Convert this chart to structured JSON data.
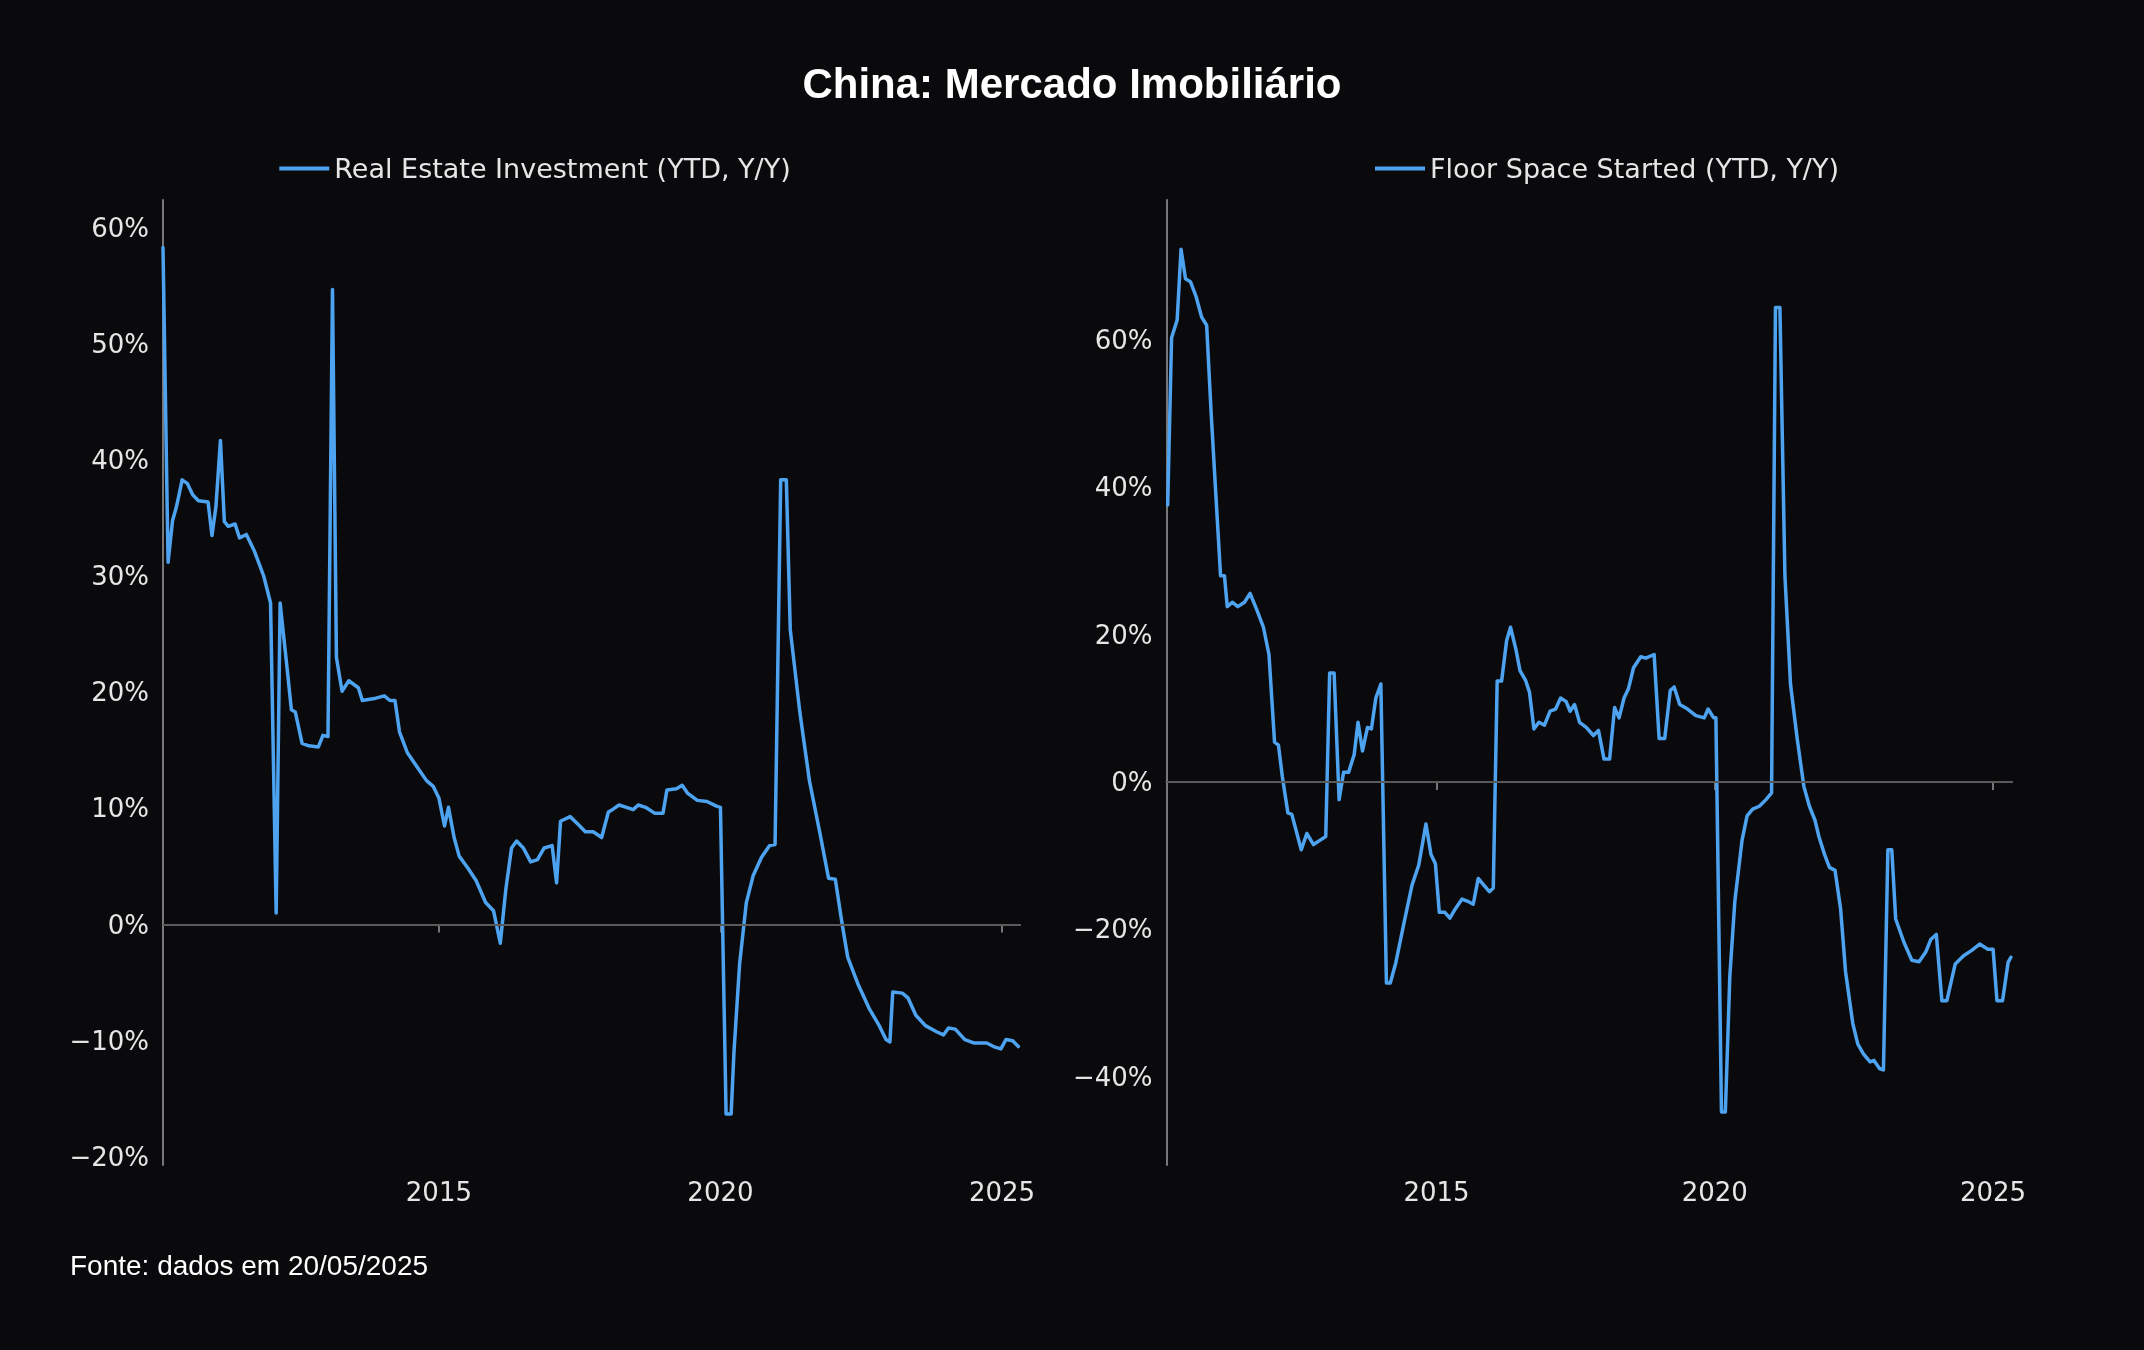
{
  "chart_data": [
    {
      "type": "line",
      "title": "China: Mercado Imobiliário",
      "annotations": [
        "Fonte: dados em 20/05/2025"
      ],
      "legend": "top",
      "marker": "none",
      "line_style": "solid",
      "grid": false,
      "xlim": [
        2010.1,
        2025.32
      ],
      "xticks": [
        2015,
        2020,
        2025
      ],
      "ylim": [
        -20.7,
        62.4
      ],
      "yticks": [
        {
          "value": -20,
          "label": "−20%"
        },
        {
          "value": -10,
          "label": "−10%"
        },
        {
          "value": 0,
          "label": "0%"
        },
        {
          "value": 10,
          "label": "10%"
        },
        {
          "value": 20,
          "label": "20%"
        },
        {
          "value": 30,
          "label": "30%"
        },
        {
          "value": 40,
          "label": "40%"
        },
        {
          "value": 50,
          "label": "50%"
        },
        {
          "value": 60,
          "label": "60%"
        }
      ],
      "ref_lines": [
        {
          "axis": "y",
          "value": 0,
          "color": "#5a5a5a"
        }
      ],
      "series": [
        {
          "name": "Real Estate Investment (YTD, Y/Y)",
          "color": "#4da3f0",
          "x": [
            2010.1,
            2010.19,
            2010.27,
            2010.34,
            2010.44,
            2010.53,
            2010.63,
            2010.73,
            2010.9,
            2010.97,
            2011.04,
            2011.12,
            2011.19,
            2011.26,
            2011.38,
            2011.46,
            2011.58,
            2011.72,
            2011.89,
            2012.01,
            2012.11,
            2012.18,
            2012.31,
            2012.38,
            2012.45,
            2012.57,
            2012.69,
            2012.86,
            2012.94,
            2013.03,
            2013.11,
            2013.18,
            2013.28,
            2013.4,
            2013.57,
            2013.64,
            2013.88,
            2014.03,
            2014.13,
            2014.22,
            2014.3,
            2014.44,
            2014.61,
            2014.78,
            2014.9,
            2015.0,
            2015.1,
            2015.17,
            2015.27,
            2015.36,
            2015.51,
            2015.66,
            2015.83,
            2015.97,
            2016.09,
            2016.19,
            2016.29,
            2016.38,
            2016.5,
            2016.63,
            2016.75,
            2016.87,
            2017.01,
            2017.09,
            2017.16,
            2017.33,
            2017.48,
            2017.6,
            2017.74,
            2017.89,
            2018.01,
            2018.08,
            2018.2,
            2018.33,
            2018.45,
            2018.54,
            2018.67,
            2018.83,
            2018.98,
            2019.05,
            2019.22,
            2019.32,
            2019.42,
            2019.59,
            2019.76,
            2019.93,
            2020.0,
            2020.1,
            2020.19,
            2020.24,
            2020.34,
            2020.46,
            2020.58,
            2020.73,
            2020.87,
            2020.97,
            2021.07,
            2021.17,
            2021.24,
            2021.41,
            2021.58,
            2021.77,
            2021.92,
            2022.04,
            2022.16,
            2022.26,
            2022.45,
            2022.65,
            2022.82,
            2022.94,
            2023.01,
            2023.06,
            2023.23,
            2023.33,
            2023.47,
            2023.64,
            2023.83,
            2023.96,
            2024.05,
            2024.17,
            2024.34,
            2024.51,
            2024.73,
            2024.85,
            2024.98,
            2025.07,
            2025.19,
            2025.29
          ],
          "values": [
            58.3,
            31.2,
            34.8,
            36,
            38.3,
            38,
            37,
            36.5,
            36.4,
            33.5,
            36,
            41.7,
            34.7,
            34.3,
            34.5,
            33.3,
            33.6,
            32.2,
            30,
            27.7,
            1,
            27.7,
            21.8,
            18.5,
            18.3,
            15.6,
            15.4,
            15.3,
            16.3,
            16.2,
            54.7,
            23,
            20.1,
            21,
            20.4,
            19.3,
            19.5,
            19.7,
            19.3,
            19.3,
            16.6,
            14.8,
            13.6,
            12.4,
            11.9,
            10.9,
            8.5,
            10.1,
            7.5,
            5.9,
            4.9,
            3.8,
            1.9,
            1.2,
            -1.6,
            3.1,
            6.6,
            7.2,
            6.6,
            5.4,
            5.6,
            6.6,
            6.8,
            3.6,
            8.9,
            9.3,
            8.6,
            8,
            8,
            7.5,
            9.7,
            9.9,
            10.3,
            10.1,
            9.9,
            10.3,
            10.1,
            9.6,
            9.6,
            11.6,
            11.7,
            12,
            11.3,
            10.7,
            10.6,
            10.2,
            10.1,
            -16.3,
            -16.3,
            -11,
            -3.4,
            1.9,
            4.2,
            5.8,
            6.8,
            6.9,
            38.3,
            38.3,
            25.4,
            18.3,
            12.4,
            7.8,
            4,
            3.9,
            0.1,
            -2.8,
            -5.2,
            -7.3,
            -8.7,
            -9.9,
            -10.1,
            -5.8,
            -5.9,
            -6.3,
            -7.8,
            -8.7,
            -9.2,
            -9.5,
            -8.9,
            -9,
            -9.9,
            -10.2,
            -10.2,
            -10.5,
            -10.7,
            -9.9,
            -10,
            -10.5
          ]
        }
      ]
    },
    {
      "type": "line",
      "legend": "top",
      "marker": "none",
      "line_style": "solid",
      "grid": false,
      "xlim": [
        2010.15,
        2025.34
      ],
      "xticks": [
        2015,
        2020,
        2025
      ],
      "ylim": [
        -52,
        79
      ],
      "yticks": [
        {
          "value": -40,
          "label": "−40%"
        },
        {
          "value": -20,
          "label": "−20%"
        },
        {
          "value": 0,
          "label": "0%"
        },
        {
          "value": 20,
          "label": "20%"
        },
        {
          "value": 40,
          "label": "40%"
        },
        {
          "value": 60,
          "label": "60%"
        }
      ],
      "ref_lines": [
        {
          "axis": "y",
          "value": 0,
          "color": "#5a5a5a"
        }
      ],
      "series": [
        {
          "name": "Floor Space Started (YTD, Y/Y)",
          "color": "#4da3f0",
          "x": [
            2010.17,
            2010.24,
            2010.34,
            2010.41,
            2010.49,
            2010.58,
            2010.68,
            2010.78,
            2010.87,
            2010.95,
            2011.02,
            2011.12,
            2011.19,
            2011.24,
            2011.33,
            2011.43,
            2011.55,
            2011.65,
            2011.77,
            2011.89,
            2011.99,
            2012.09,
            2012.16,
            2012.23,
            2012.33,
            2012.4,
            2012.57,
            2012.67,
            2012.79,
            2012.91,
            2013.01,
            2013.08,
            2013.16,
            2013.25,
            2013.33,
            2013.42,
            2013.52,
            2013.59,
            2013.67,
            2013.76,
            2013.83,
            2013.91,
            2014.0,
            2014.1,
            2014.17,
            2014.27,
            2014.42,
            2014.56,
            2014.68,
            2014.81,
            2014.9,
            2014.98,
            2015.05,
            2015.15,
            2015.24,
            2015.34,
            2015.46,
            2015.56,
            2015.66,
            2015.75,
            2015.85,
            2015.95,
            2016.02,
            2016.09,
            2016.17,
            2016.26,
            2016.33,
            2016.43,
            2016.5,
            2016.6,
            2016.67,
            2016.75,
            2016.84,
            2016.94,
            2017.04,
            2017.14,
            2017.23,
            2017.33,
            2017.4,
            2017.48,
            2017.57,
            2017.69,
            2017.82,
            2017.91,
            2018.01,
            2018.11,
            2018.2,
            2018.28,
            2018.37,
            2018.45,
            2018.54,
            2018.67,
            2018.76,
            2018.91,
            2019.0,
            2019.1,
            2019.2,
            2019.27,
            2019.37,
            2019.51,
            2019.66,
            2019.81,
            2019.88,
            2019.98,
            2020.02,
            2020.12,
            2020.19,
            2020.27,
            2020.36,
            2020.49,
            2020.58,
            2020.68,
            2020.8,
            2020.92,
            2021.02,
            2021.09,
            2021.17,
            2021.26,
            2021.36,
            2021.48,
            2021.6,
            2021.7,
            2021.8,
            2021.87,
            2021.97,
            2022.06,
            2022.16,
            2022.26,
            2022.35,
            2022.48,
            2022.57,
            2022.67,
            2022.79,
            2022.86,
            2022.96,
            2023.03,
            2023.11,
            2023.18,
            2023.25,
            2023.4,
            2023.54,
            2023.67,
            2023.79,
            2023.88,
            2023.98,
            2024.08,
            2024.17,
            2024.32,
            2024.47,
            2024.61,
            2024.76,
            2024.9,
            2025.0,
            2025.07,
            2025.17,
            2025.27,
            2025.32
          ],
          "values": [
            37.6,
            60.3,
            62.7,
            72.3,
            68.3,
            67.9,
            65.9,
            63.1,
            62,
            50.2,
            41,
            28,
            28,
            23.8,
            24.4,
            23.8,
            24.4,
            25.6,
            23.4,
            21,
            17.3,
            5.4,
            5,
            0.7,
            -4.2,
            -4.4,
            -9.2,
            -7,
            -8.5,
            -7.9,
            -7.4,
            14.8,
            14.8,
            -2.4,
            1.3,
            1.3,
            3.7,
            8.1,
            4.2,
            7.4,
            7.2,
            11.4,
            13.3,
            -27.3,
            -27.3,
            -24.5,
            -19,
            -14,
            -11.3,
            -5.7,
            -9.8,
            -11.1,
            -17.7,
            -17.7,
            -18.5,
            -17.2,
            -15.9,
            -16.2,
            -16.6,
            -13.1,
            -14,
            -14.9,
            -14.4,
            13.7,
            13.7,
            19.2,
            21,
            17.9,
            15.1,
            13.8,
            12.2,
            7.2,
            8.1,
            7.7,
            9.6,
            9.9,
            11.4,
            10.9,
            9.6,
            10.5,
            8.1,
            7.4,
            6.3,
            7,
            3.1,
            3.1,
            10.1,
            8.7,
            11.4,
            12.7,
            15.5,
            17,
            16.8,
            17.3,
            5.9,
            5.9,
            12.4,
            12.9,
            10.5,
            9.9,
            9,
            8.7,
            9.9,
            8.7,
            8.7,
            -44.8,
            -44.8,
            -26.4,
            -16.2,
            -7.9,
            -4.6,
            -3.7,
            -3.3,
            -2.4,
            -1.5,
            64.4,
            64.4,
            28,
            13.3,
            5.9,
            -0.6,
            -3.3,
            -5.2,
            -7.4,
            -9.8,
            -11.6,
            -12,
            -17.2,
            -25.8,
            -32.8,
            -35.6,
            -36.9,
            -38,
            -37.8,
            -38.9,
            -39.1,
            -9.2,
            -9.2,
            -18.6,
            -21.8,
            -24.2,
            -24.4,
            -23.1,
            -21.4,
            -20.7,
            -29.7,
            -29.7,
            -24.7,
            -23.6,
            -22.9,
            -22,
            -22.7,
            -22.7,
            -29.7,
            -29.7,
            -24.5,
            -23.8
          ]
        }
      ]
    }
  ]
}
